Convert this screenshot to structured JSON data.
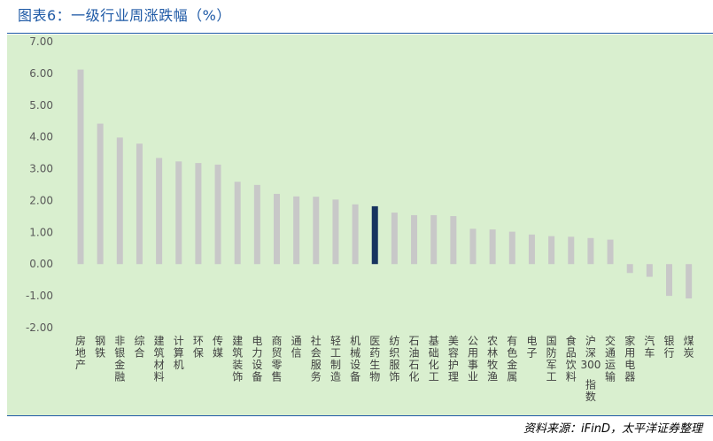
{
  "header": {
    "title": "图表6：一级行业周涨跌幅（%）"
  },
  "footer": {
    "source": "资料来源：iFinD，太平洋证券整理"
  },
  "colors": {
    "background": "#d9efcf",
    "bar": "#c8c8c8",
    "highlight": "#17335f",
    "rule": "#1f5aa6"
  },
  "chart_data": {
    "type": "bar",
    "title": "图表6：一级行业周涨跌幅（%）",
    "xlabel": "",
    "ylabel": "",
    "ylim": [
      -2.0,
      7.0
    ],
    "yticks": [
      "7.00",
      "6.00",
      "5.00",
      "4.00",
      "3.00",
      "2.00",
      "1.00",
      "0.00",
      "-1.00",
      "-2.00"
    ],
    "grid": false,
    "legend": "none",
    "highlight_category": "医药生物",
    "categories": [
      "房地产",
      "钢铁",
      "非银金融",
      "综合",
      "建筑材料",
      "计算机",
      "环保",
      "传媒",
      "建筑装饰",
      "电力设备",
      "商贸零售",
      "通信",
      "社会服务",
      "轻工制造",
      "机械设备",
      "医药生物",
      "纺织服饰",
      "石油石化",
      "基础化工",
      "美容护理",
      "公用事业",
      "农林牧渔",
      "有色金属",
      "电子",
      "国防军工",
      "食品饮料",
      "沪深300指数",
      "交通运输",
      "家用电器",
      "汽车",
      "银行",
      "煤炭"
    ],
    "values": [
      6.12,
      4.42,
      3.98,
      3.79,
      3.34,
      3.23,
      3.18,
      3.13,
      2.59,
      2.49,
      2.21,
      2.13,
      2.12,
      2.03,
      1.88,
      1.82,
      1.62,
      1.54,
      1.54,
      1.51,
      1.11,
      1.09,
      1.02,
      0.93,
      0.88,
      0.86,
      0.82,
      0.77,
      -0.28,
      -0.4,
      -1.0,
      -1.08
    ]
  }
}
